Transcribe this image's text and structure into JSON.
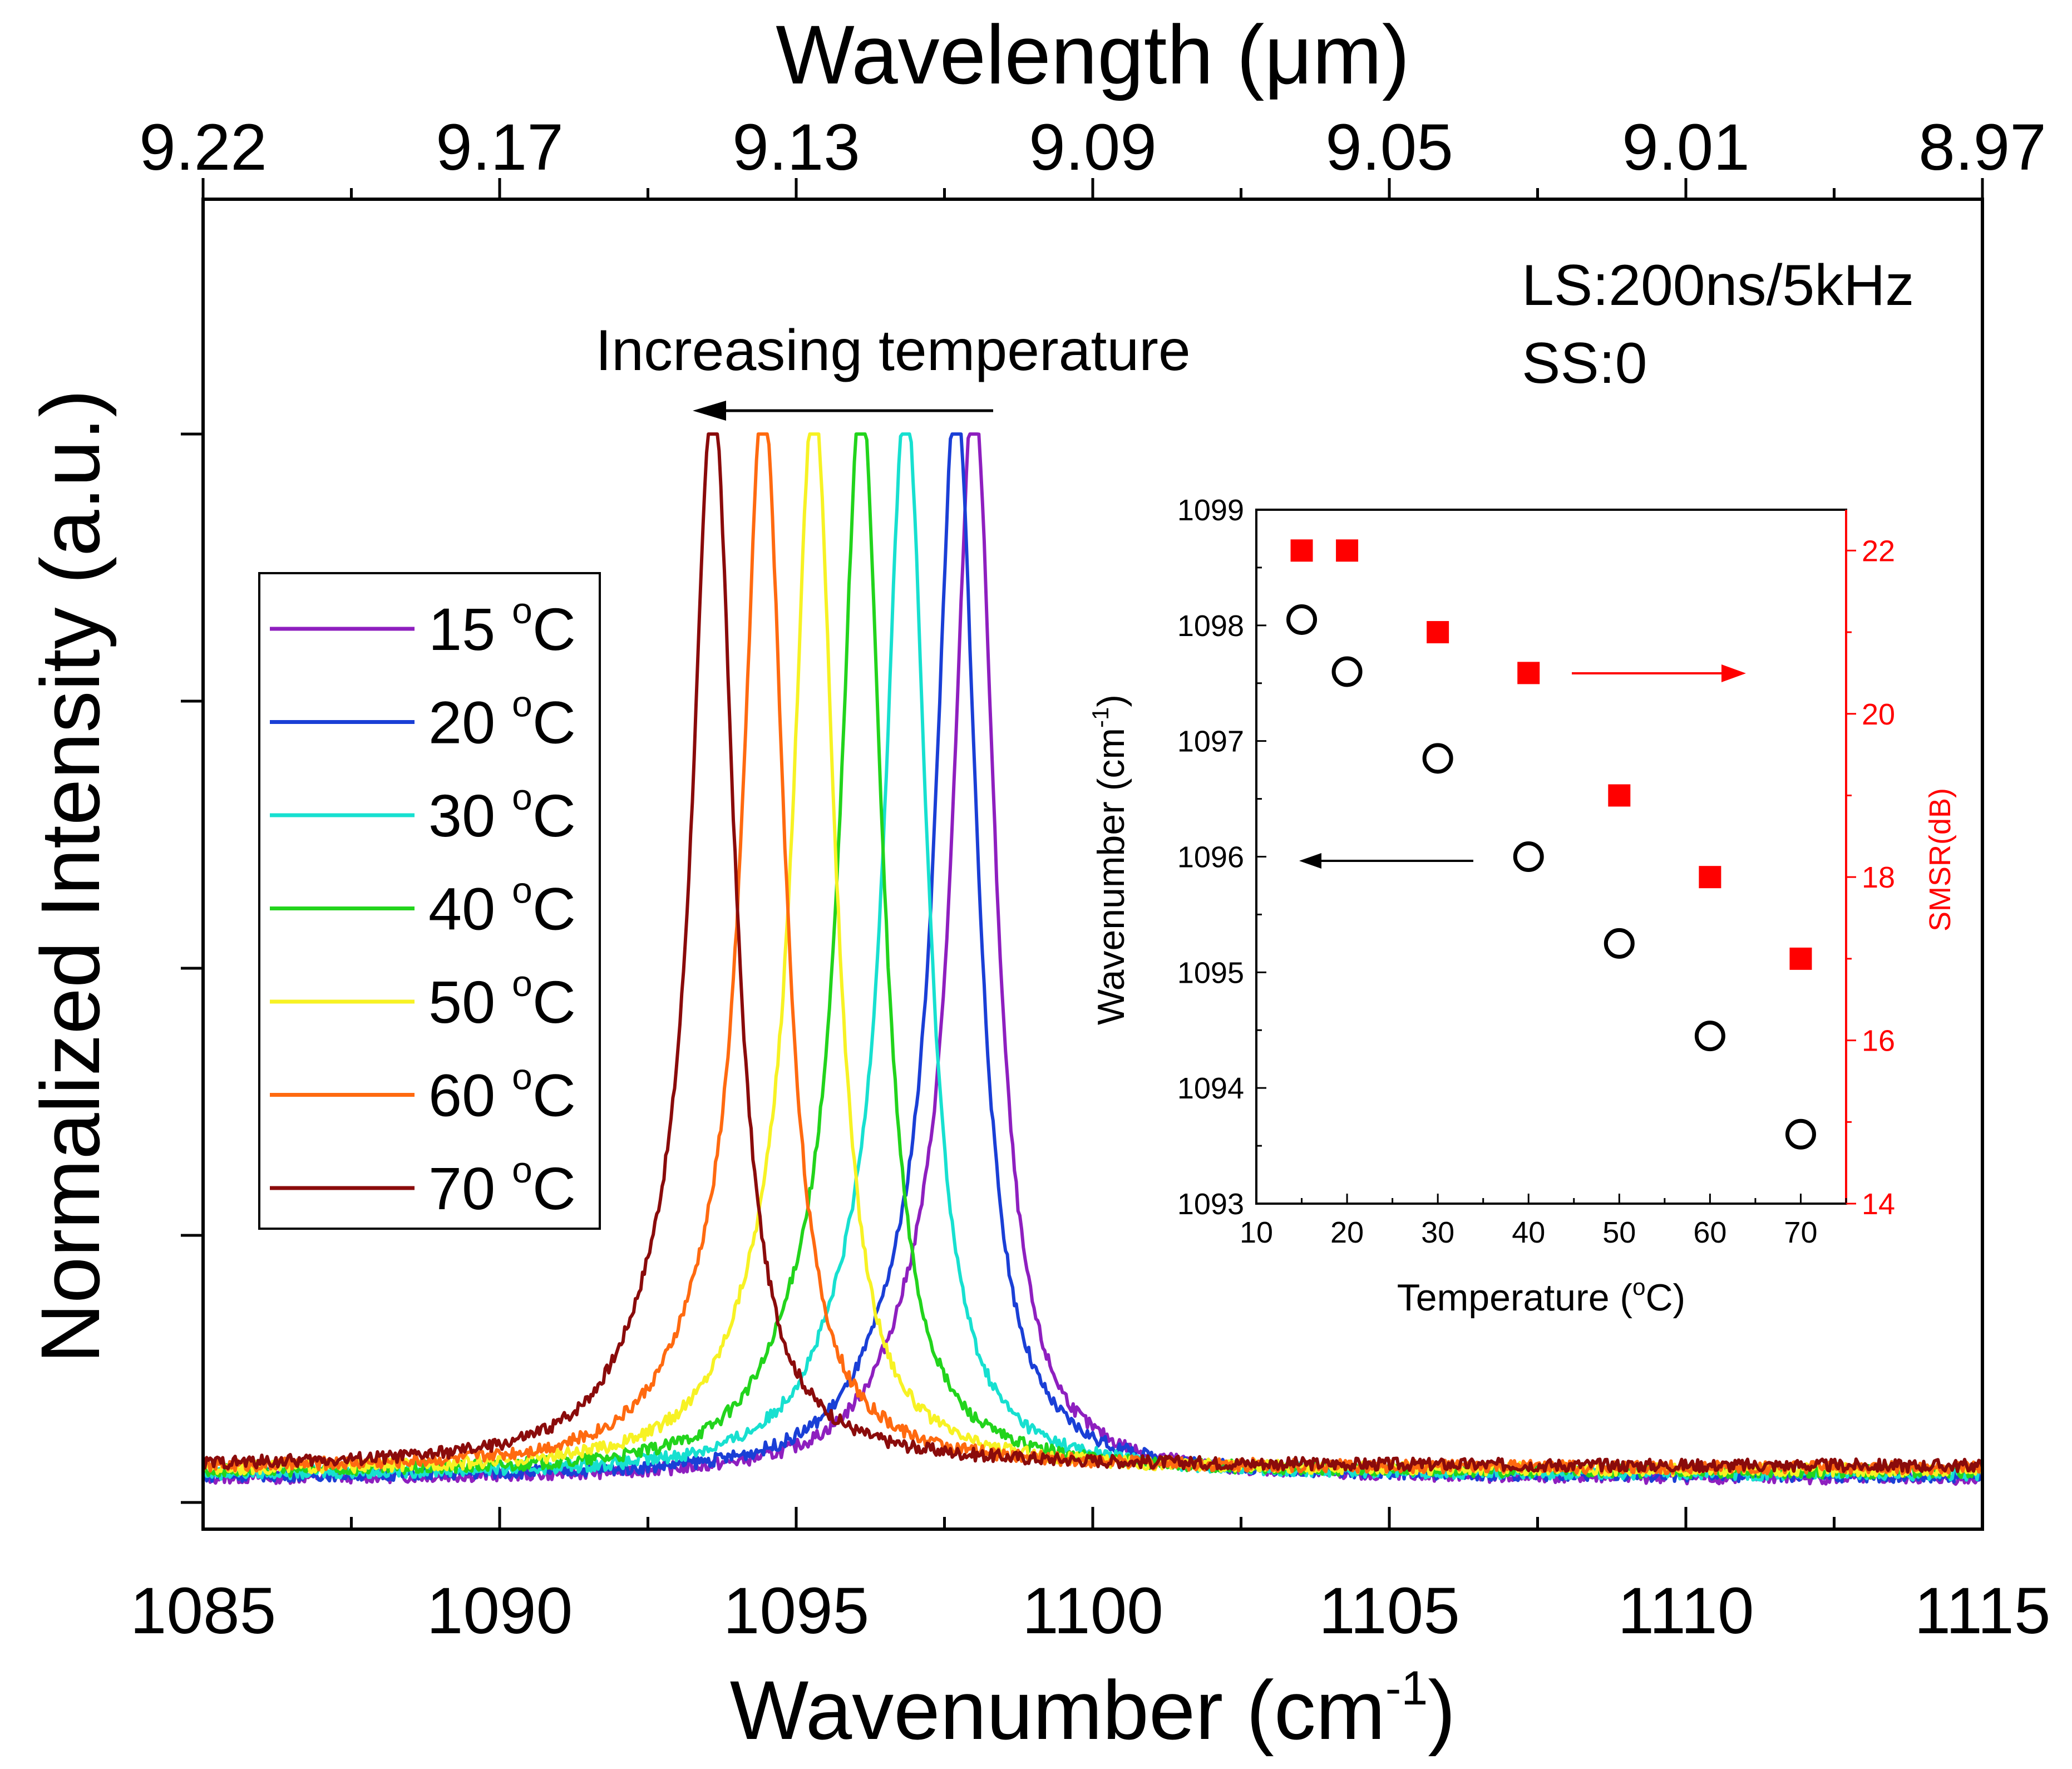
{
  "chart_data": [
    {
      "type": "line",
      "xlabel": "Wavenumber (cm",
      "xlabel_sup": "-1",
      "xlabel_end": ")",
      "ylabel": "Normalized Intensity (a.u.)",
      "top_xlabel": "Wavelength (μm)",
      "xlim": [
        1085,
        1115
      ],
      "ylim": [
        0,
        1
      ],
      "x_ticks": [
        1085,
        1090,
        1095,
        1100,
        1105,
        1110,
        1115
      ],
      "top_ticks": [
        {
          "label": "9.22",
          "at": 1085
        },
        {
          "label": "9.17",
          "at": 1090
        },
        {
          "label": "9.13",
          "at": 1095
        },
        {
          "label": "9.09",
          "at": 1100
        },
        {
          "label": "9.05",
          "at": 1105
        },
        {
          "label": "9.01",
          "at": 1110
        },
        {
          "label": "8.97",
          "at": 1115
        }
      ],
      "annotations": {
        "arrow_label": "Increasing temperature",
        "conditions_line1": "LS:200ns/5kHz",
        "conditions_line2": "SS:0"
      },
      "legend_position": "center-left",
      "series": [
        {
          "name": "15",
          "unit": "C",
          "peak": 1098.0,
          "color": "#8e1fbf"
        },
        {
          "name": "20",
          "unit": "C",
          "peak": 1097.7,
          "color": "#1a3fd6"
        },
        {
          "name": "30",
          "unit": "C",
          "peak": 1096.85,
          "color": "#17e0d0"
        },
        {
          "name": "40",
          "unit": "C",
          "peak": 1096.1,
          "color": "#22d41c"
        },
        {
          "name": "50",
          "unit": "C",
          "peak": 1095.3,
          "color": "#f7f224"
        },
        {
          "name": "60",
          "unit": "C",
          "peak": 1094.45,
          "color": "#ff6a10"
        },
        {
          "name": "70",
          "unit": "C",
          "peak": 1093.6,
          "color": "#8a0b0b"
        }
      ]
    },
    {
      "type": "scatter",
      "xlabel": "Temperature (",
      "xlabel_sup": "o",
      "xlabel_end": "C)",
      "ylabel": "Wavenumber (cm",
      "ylabel_sup": "-1",
      "ylabel_end": ")",
      "y2label": "SMSR(dB)",
      "xlim": [
        10,
        75
      ],
      "ylim": [
        1093,
        1099
      ],
      "y2lim": [
        14,
        22.5
      ],
      "x_ticks": [
        10,
        20,
        30,
        40,
        50,
        60,
        70
      ],
      "y_ticks": [
        1093,
        1094,
        1095,
        1096,
        1097,
        1098,
        1099
      ],
      "y2_ticks": [
        14,
        16,
        18,
        20,
        22
      ],
      "series": [
        {
          "name": "Wavenumber",
          "axis": "left",
          "marker": "open-circle",
          "color": "#000000",
          "x": [
            15,
            20,
            30,
            40,
            50,
            60,
            70
          ],
          "y": [
            1098.05,
            1097.6,
            1096.85,
            1096.0,
            1095.25,
            1094.45,
            1093.6
          ]
        },
        {
          "name": "SMSR",
          "axis": "right",
          "marker": "filled-square",
          "color": "#ff0000",
          "x": [
            15,
            20,
            30,
            40,
            50,
            60,
            70
          ],
          "y": [
            22.0,
            22.0,
            21.0,
            20.5,
            19.0,
            18.0,
            17.0
          ]
        }
      ]
    }
  ]
}
